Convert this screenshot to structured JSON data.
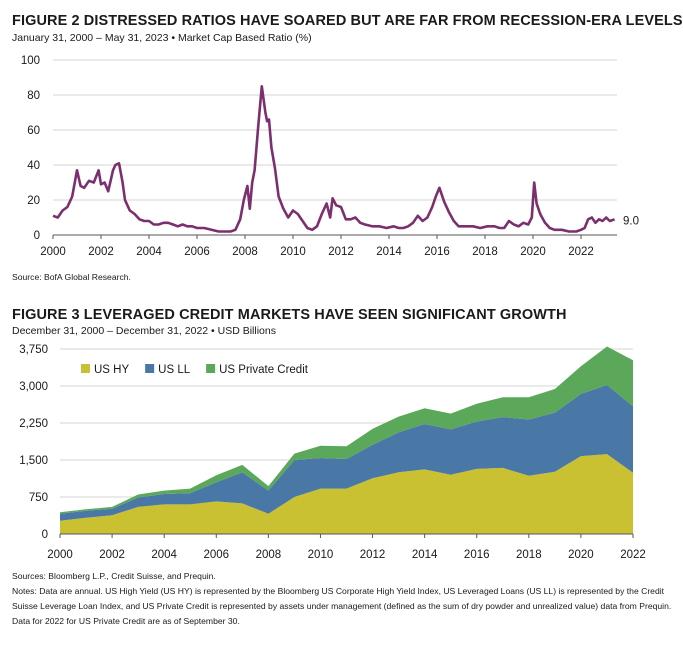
{
  "figure2": {
    "title": "FIGURE 2   DISTRESSED RATIOS HAVE SOARED BUT ARE FAR FROM RECESSION-ERA LEVELS",
    "subtitle": "January 31, 2000 – May 31, 2023 • Market Cap Based Ratio (%)",
    "source": "Source: BofA Global Research."
  },
  "figure3": {
    "title": "FIGURE 3   LEVERAGED CREDIT MARKETS HAVE SEEN SIGNIFICANT GROWTH",
    "subtitle": "December 31, 2000 – December 31, 2022 • USD Billions",
    "sources": "Sources: Bloomberg L.P., Credit Suisse, and Prequin.",
    "notes": "Notes: Data are annual. US High Yield (US HY) is represented by the Bloomberg US Corporate High Yield Index, US Leveraged Loans (US LL) is represented by the Credit Suisse Leverage Loan Index, and US Private Credit is represented by assets under management (defined as the sum of dry powder and unrealized value) data from Prequin. Data for 2022 for US Private Credit are as of September 30."
  },
  "chart_data": [
    {
      "type": "line",
      "title": "FIGURE 2   DISTRESSED RATIOS HAVE SOARED BUT ARE FAR FROM RECESSION-ERA LEVELS",
      "xlim": [
        2000,
        2023.5
      ],
      "ylim": [
        0,
        100
      ],
      "xticks": [
        "2000",
        "2002",
        "2004",
        "2006",
        "2008",
        "2010",
        "2012",
        "2014",
        "2016",
        "2018",
        "2020",
        "2022"
      ],
      "yticks": [
        "0",
        "20",
        "40",
        "60",
        "80",
        "100"
      ],
      "grid": true,
      "color": "#7b2f6e",
      "end_label": "9.0",
      "series": [
        {
          "x": [
            2000.0,
            2000.2,
            2000.4,
            2000.6,
            2000.8,
            2001.0,
            2001.15,
            2001.3,
            2001.5,
            2001.7,
            2001.9,
            2002.0,
            2002.15,
            2002.3,
            2002.5,
            2002.6,
            2002.75,
            2002.9,
            2003.0,
            2003.2,
            2003.4,
            2003.6,
            2003.8,
            2004.0,
            2004.2,
            2004.4,
            2004.6,
            2004.8,
            2005.0,
            2005.2,
            2005.4,
            2005.6,
            2005.8,
            2006.0,
            2006.3,
            2006.6,
            2006.9,
            2007.2,
            2007.4,
            2007.6,
            2007.8,
            2007.95,
            2008.1,
            2008.2,
            2008.3,
            2008.4,
            2008.55,
            2008.7,
            2008.85,
            2008.92,
            2009.0,
            2009.1,
            2009.25,
            2009.4,
            2009.6,
            2009.8,
            2010.0,
            2010.2,
            2010.4,
            2010.6,
            2010.8,
            2011.0,
            2011.2,
            2011.4,
            2011.55,
            2011.65,
            2011.8,
            2012.0,
            2012.2,
            2012.4,
            2012.6,
            2012.8,
            2013.0,
            2013.3,
            2013.6,
            2013.9,
            2014.2,
            2014.4,
            2014.6,
            2014.8,
            2015.0,
            2015.2,
            2015.4,
            2015.6,
            2015.8,
            2015.95,
            2016.1,
            2016.3,
            2016.5,
            2016.7,
            2016.9,
            2017.2,
            2017.5,
            2017.8,
            2018.1,
            2018.4,
            2018.6,
            2018.8,
            2019.0,
            2019.2,
            2019.4,
            2019.6,
            2019.8,
            2019.95,
            2020.05,
            2020.15,
            2020.3,
            2020.5,
            2020.7,
            2020.9,
            2021.2,
            2021.5,
            2021.8,
            2022.0,
            2022.15,
            2022.3,
            2022.45,
            2022.6,
            2022.75,
            2022.9,
            2023.05,
            2023.2,
            2023.4
          ],
          "y": [
            11,
            10,
            14,
            16,
            22,
            37,
            28,
            27,
            31,
            30,
            37,
            29,
            30,
            25,
            37,
            40,
            41,
            30,
            20,
            14,
            12,
            9,
            8,
            8,
            6,
            6,
            7,
            7,
            6,
            5,
            6,
            5,
            5,
            4,
            4,
            3,
            2,
            2,
            2,
            3,
            9,
            20,
            28,
            15,
            30,
            37,
            62,
            85,
            70,
            65,
            66,
            50,
            38,
            22,
            15,
            10,
            14,
            12,
            8,
            4,
            3,
            5,
            12,
            18,
            10,
            21,
            17,
            16,
            9,
            9,
            10,
            7,
            6,
            5,
            5,
            4,
            5,
            4,
            4,
            5,
            7,
            11,
            8,
            10,
            16,
            22,
            27,
            19,
            13,
            8,
            5,
            5,
            5,
            4,
            5,
            5,
            4,
            4,
            8,
            6,
            5,
            7,
            6,
            10,
            30,
            18,
            12,
            7,
            4,
            3,
            3,
            2,
            2,
            3,
            4,
            9,
            10,
            7,
            9,
            8,
            10,
            8,
            9
          ]
        }
      ]
    },
    {
      "type": "area",
      "stacked": true,
      "title": "FIGURE 3   LEVERAGED CREDIT MARKETS HAVE SEEN SIGNIFICANT GROWTH",
      "x": [
        2000,
        2001,
        2002,
        2003,
        2004,
        2005,
        2006,
        2007,
        2008,
        2009,
        2010,
        2011,
        2012,
        2013,
        2014,
        2015,
        2016,
        2017,
        2018,
        2019,
        2020,
        2021,
        2022
      ],
      "xticks": [
        "2000",
        "2002",
        "2004",
        "2006",
        "2008",
        "2010",
        "2012",
        "2014",
        "2016",
        "2018",
        "2020",
        "2022"
      ],
      "ylim": [
        0,
        3750
      ],
      "yticks": [
        "0",
        "750",
        "1,500",
        "2,250",
        "3,000",
        "3,750"
      ],
      "grid": true,
      "legend": "top-left",
      "series": [
        {
          "name": "US HY",
          "color": "#c9c132",
          "values": [
            270,
            330,
            380,
            550,
            600,
            600,
            660,
            620,
            410,
            750,
            920,
            920,
            1130,
            1250,
            1310,
            1200,
            1320,
            1340,
            1180,
            1260,
            1580,
            1620,
            1240
          ]
        },
        {
          "name": "US LL",
          "color": "#4a78a6",
          "values": [
            140,
            140,
            130,
            190,
            210,
            230,
            390,
            630,
            470,
            750,
            620,
            600,
            680,
            810,
            920,
            920,
            960,
            1030,
            1140,
            1200,
            1260,
            1400,
            1350
          ]
        },
        {
          "name": "US Private Credit",
          "color": "#5ba85a",
          "values": [
            30,
            30,
            40,
            60,
            70,
            90,
            140,
            150,
            90,
            130,
            250,
            260,
            320,
            320,
            320,
            320,
            360,
            400,
            450,
            480,
            560,
            780,
            930
          ]
        }
      ]
    }
  ]
}
